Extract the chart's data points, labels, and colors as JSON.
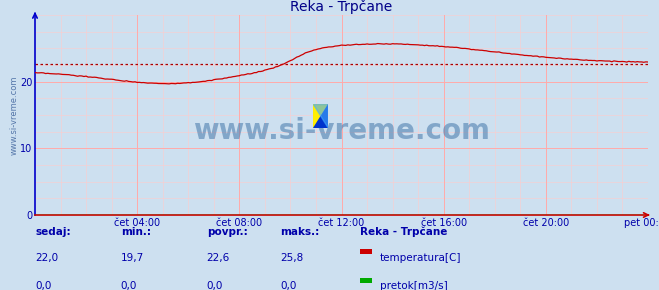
{
  "title": "Reka - Trpčane",
  "bg_color": "#cde0f0",
  "plot_bg_color": "#cde0f0",
  "figure_bg_color": "#cde0f0",
  "xlim": [
    0,
    288
  ],
  "ylim": [
    0,
    30
  ],
  "yticks": [
    0,
    10,
    20
  ],
  "xtick_labels": [
    "čet 04:00",
    "čet 08:00",
    "čet 12:00",
    "čet 16:00",
    "čet 20:00",
    "pet 00:00"
  ],
  "xtick_positions": [
    48,
    96,
    144,
    192,
    240,
    288
  ],
  "avg_line_value": 22.6,
  "avg_line_color": "#aa0000",
  "temp_line_color": "#cc0000",
  "flow_line_color": "#00aa00",
  "watermark": "www.si-vreme.com",
  "watermark_color": "#4477aa",
  "watermark_fontsize": 20,
  "title_color": "#000088",
  "title_fontsize": 10,
  "tick_label_color": "#0000aa",
  "tick_label_fontsize": 7,
  "grid_minor_color": "#ffcccc",
  "grid_major_color": "#ffaaaa",
  "ylabel_text": "www.si-vreme.com",
  "ylabel_color": "#5577aa",
  "ylabel_fontsize": 6,
  "sedaj_label": "sedaj:",
  "min_label": "min.:",
  "povpr_label": "povpr.:",
  "maks_label": "maks.:",
  "station_label": "Reka - Trpčane",
  "temp_label": "temperatura[C]",
  "flow_label": "pretok[m3/s]",
  "sedaj_temp": "22,0",
  "min_temp": "19,7",
  "povpr_temp": "22,6",
  "maks_temp": "25,8",
  "sedaj_flow": "0,0",
  "min_flow": "0,0",
  "povpr_flow": "0,0",
  "maks_flow": "0,0",
  "info_color": "#0000aa",
  "info_fontsize": 7.5,
  "temp_color": "#cc0000",
  "flow_color": "#00aa00",
  "spine_bottom_color": "#cc0000",
  "spine_left_color": "#0000cc",
  "logo_yellow": "#ffee00",
  "logo_blue_light": "#44aaff",
  "logo_blue_dark": "#0033cc"
}
